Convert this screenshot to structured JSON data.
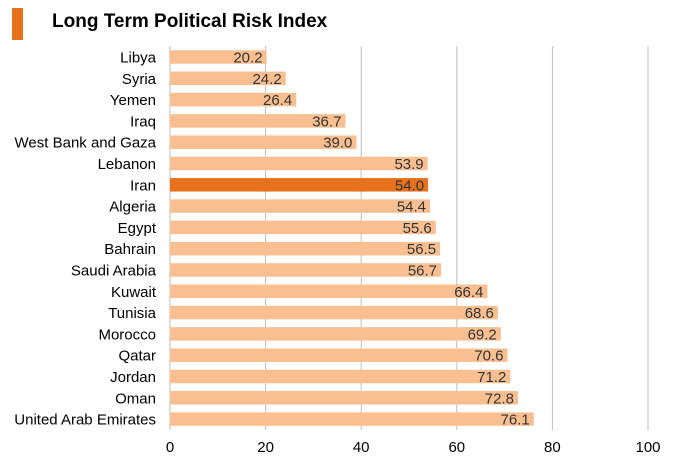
{
  "chart_data": {
    "type": "bar",
    "orientation": "horizontal",
    "title": "Long Term Political Risk Index",
    "categories": [
      "Libya",
      "Syria",
      "Yemen",
      "Iraq",
      "West Bank and Gaza",
      "Lebanon",
      "Iran",
      "Algeria",
      "Egypt",
      "Bahrain",
      "Saudi Arabia",
      "Kuwait",
      "Tunisia",
      "Morocco",
      "Qatar",
      "Jordan",
      "Oman",
      "United Arab Emirates"
    ],
    "values": [
      20.2,
      24.2,
      26.4,
      36.7,
      39.0,
      53.9,
      54.0,
      54.4,
      55.6,
      56.5,
      56.7,
      66.4,
      68.6,
      69.2,
      70.6,
      71.2,
      72.8,
      76.1
    ],
    "value_labels": [
      "20.2",
      "24.2",
      "26.4",
      "36.7",
      "39.0",
      "53.9",
      "54.0",
      "54.4",
      "55.6",
      "56.5",
      "56.7",
      "66.4",
      "68.6",
      "69.2",
      "70.6",
      "71.2",
      "72.8",
      "76.1"
    ],
    "highlight": "Iran",
    "xlim": [
      0,
      100
    ],
    "xticks": [
      "0",
      "20",
      "40",
      "60",
      "80",
      "100"
    ],
    "grid": "vertical",
    "colors": {
      "bar": "#f9bf91",
      "highlight": "#e8711c",
      "grid": "#bfbfbf",
      "accent": "#e8711c"
    }
  }
}
